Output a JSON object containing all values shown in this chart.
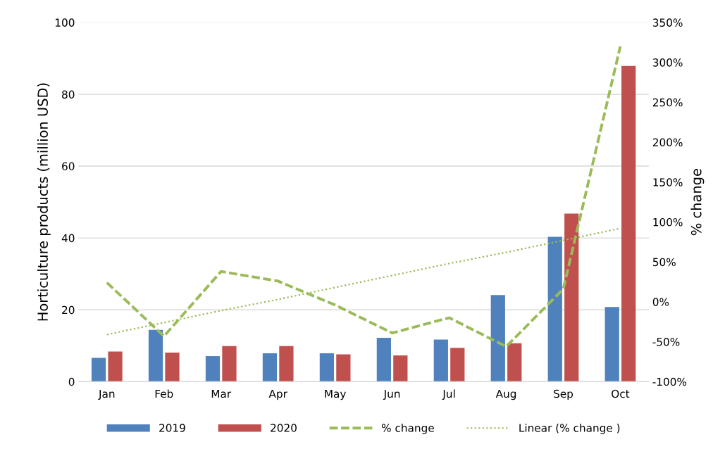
{
  "chart_data": {
    "type": "bar",
    "categories": [
      "Jan",
      "Feb",
      "Mar",
      "Apr",
      "May",
      "Jun",
      "Jul",
      "Aug",
      "Sep",
      "Oct"
    ],
    "ylabel": "Horticulture products (million USD)",
    "y2label": "% change",
    "ylim": [
      0,
      100
    ],
    "yticks": [
      0,
      20,
      40,
      60,
      80,
      100
    ],
    "y2lim": [
      -100,
      350
    ],
    "y2ticks": [
      {
        "value": -100,
        "label": "-100%"
      },
      {
        "value": -50,
        "label": "-50%"
      },
      {
        "value": 0,
        "label": "0%"
      },
      {
        "value": 50,
        "label": "50%"
      },
      {
        "value": 100,
        "label": "100%"
      },
      {
        "value": 150,
        "label": "150%"
      },
      {
        "value": 200,
        "label": "200%"
      },
      {
        "value": 250,
        "label": "250%"
      },
      {
        "value": 300,
        "label": "300%"
      },
      {
        "value": 350,
        "label": "350%"
      }
    ],
    "grid": "y",
    "legend": "bottom",
    "series": [
      {
        "name": "2019",
        "color": "#4f81bd",
        "values": [
          6.6,
          14.4,
          7.1,
          7.9,
          7.9,
          12.2,
          11.7,
          24.1,
          40.3,
          20.8
        ]
      },
      {
        "name": "2020",
        "color": "#c0504d",
        "values": [
          8.4,
          8.1,
          9.9,
          9.9,
          7.6,
          7.3,
          9.4,
          10.7,
          46.8,
          87.9
        ]
      },
      {
        "name": "% change",
        "type": "line",
        "axis": "y2",
        "line_style": "dashed",
        "color": "#9bbb59",
        "values": [
          24,
          -43,
          38,
          26,
          -4,
          -39,
          -20,
          -56,
          16,
          320
        ]
      },
      {
        "name": "Linear (% change )",
        "type": "line",
        "axis": "y2",
        "line_style": "dotted",
        "color": "#9bbb59",
        "values": [
          -41,
          -26,
          -11,
          3,
          18,
          33,
          48,
          62,
          77,
          92
        ]
      }
    ]
  }
}
